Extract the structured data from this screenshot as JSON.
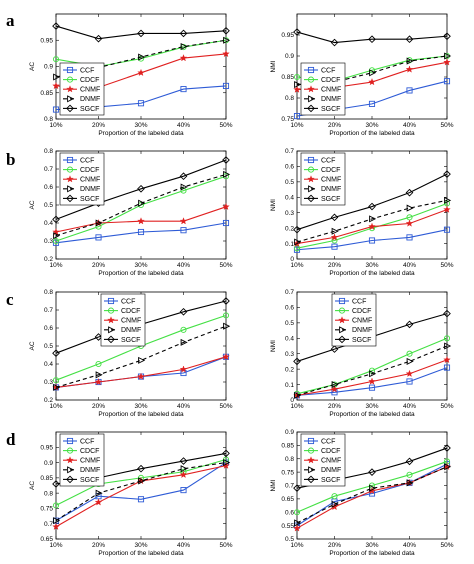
{
  "series_styles": {
    "CCF": {
      "color": "#2e5bd6",
      "marker": "square",
      "dash": "none"
    },
    "CDCF": {
      "color": "#44e044",
      "marker": "circle",
      "dash": "none"
    },
    "CNMF": {
      "color": "#e02020",
      "marker": "star",
      "dash": "none"
    },
    "DNMF": {
      "color": "#000000",
      "marker": "triangle",
      "dash": "4,3"
    },
    "SGCF": {
      "color": "#000000",
      "marker": "diamond",
      "dash": "none"
    }
  },
  "chart_data": [
    {
      "type": "line",
      "panel_label": "a",
      "xlabel": "Proportion of the labeled data",
      "ylabel": "AC",
      "categories": [
        "10%",
        "20%",
        "30%",
        "40%",
        "50%"
      ],
      "ylim": [
        0.8,
        1.0
      ],
      "yticks": [
        "0.8",
        "0.85",
        "0.9",
        "0.95"
      ],
      "ytick_values": [
        0.8,
        0.85,
        0.9,
        0.95
      ],
      "legend_position": "lower-left",
      "series": [
        {
          "name": "CCF",
          "values": [
            0.818,
            0.823,
            0.83,
            0.857,
            0.863
          ]
        },
        {
          "name": "CDCF",
          "values": [
            0.914,
            0.9,
            0.915,
            0.937,
            0.95
          ]
        },
        {
          "name": "CNMF",
          "values": [
            0.863,
            0.86,
            0.888,
            0.916,
            0.924
          ]
        },
        {
          "name": "DNMF",
          "values": [
            0.88,
            0.898,
            0.918,
            0.938,
            0.95
          ]
        },
        {
          "name": "SGCF",
          "values": [
            0.977,
            0.953,
            0.963,
            0.963,
            0.968
          ]
        }
      ]
    },
    {
      "type": "line",
      "panel_label": "",
      "xlabel": "Proportion of the labeled data",
      "ylabel": "NMI",
      "categories": [
        "10%",
        "20%",
        "30%",
        "40%",
        "50%"
      ],
      "ylim": [
        0.75,
        1.0
      ],
      "yticks": [
        "0.75",
        "0.8",
        "0.85",
        "0.9",
        "0.95"
      ],
      "ytick_values": [
        0.75,
        0.8,
        0.85,
        0.9,
        0.95
      ],
      "legend_position": "lower-left",
      "series": [
        {
          "name": "CCF",
          "values": [
            0.757,
            0.772,
            0.786,
            0.818,
            0.84
          ]
        },
        {
          "name": "CDCF",
          "values": [
            0.85,
            0.84,
            0.866,
            0.89,
            0.9
          ]
        },
        {
          "name": "CNMF",
          "values": [
            0.82,
            0.825,
            0.838,
            0.868,
            0.885
          ]
        },
        {
          "name": "DNMF",
          "values": [
            0.832,
            0.838,
            0.86,
            0.888,
            0.9
          ]
        },
        {
          "name": "SGCF",
          "values": [
            0.957,
            0.932,
            0.94,
            0.94,
            0.947
          ]
        }
      ]
    },
    {
      "type": "line",
      "panel_label": "b",
      "xlabel": "Proportion of the labeled data",
      "ylabel": "AC",
      "categories": [
        "10%",
        "20%",
        "30%",
        "40%",
        "50%"
      ],
      "ylim": [
        0.2,
        0.8
      ],
      "yticks": [
        "0.2",
        "0.3",
        "0.4",
        "0.5",
        "0.6",
        "0.7",
        "0.8"
      ],
      "ytick_values": [
        0.2,
        0.3,
        0.4,
        0.5,
        0.6,
        0.7,
        0.8
      ],
      "legend_position": "upper-left",
      "series": [
        {
          "name": "CCF",
          "values": [
            0.29,
            0.32,
            0.35,
            0.36,
            0.4
          ]
        },
        {
          "name": "CDCF",
          "values": [
            0.3,
            0.38,
            0.5,
            0.58,
            0.66
          ]
        },
        {
          "name": "CNMF",
          "values": [
            0.35,
            0.4,
            0.41,
            0.41,
            0.49
          ]
        },
        {
          "name": "DNMF",
          "values": [
            0.33,
            0.4,
            0.51,
            0.6,
            0.67
          ]
        },
        {
          "name": "SGCF",
          "values": [
            0.42,
            0.51,
            0.59,
            0.66,
            0.75
          ]
        }
      ]
    },
    {
      "type": "line",
      "panel_label": "",
      "xlabel": "Proportion of the labeled data",
      "ylabel": "NMI",
      "categories": [
        "10%",
        "20%",
        "30%",
        "40%",
        "50%"
      ],
      "ylim": [
        0.0,
        0.7
      ],
      "yticks": [
        "0",
        "0.1",
        "0.2",
        "0.3",
        "0.4",
        "0.5",
        "0.6",
        "0.7"
      ],
      "ytick_values": [
        0,
        0.1,
        0.2,
        0.3,
        0.4,
        0.5,
        0.6,
        0.7
      ],
      "legend_position": "upper-left",
      "series": [
        {
          "name": "CCF",
          "values": [
            0.06,
            0.08,
            0.12,
            0.14,
            0.19
          ]
        },
        {
          "name": "CDCF",
          "values": [
            0.07,
            0.12,
            0.2,
            0.27,
            0.36
          ]
        },
        {
          "name": "CNMF",
          "values": [
            0.1,
            0.14,
            0.21,
            0.23,
            0.32
          ]
        },
        {
          "name": "DNMF",
          "values": [
            0.11,
            0.18,
            0.26,
            0.33,
            0.38
          ]
        },
        {
          "name": "SGCF",
          "values": [
            0.19,
            0.27,
            0.34,
            0.43,
            0.55
          ]
        }
      ]
    },
    {
      "type": "line",
      "panel_label": "c",
      "xlabel": "Proportion of the labeled data",
      "ylabel": "AC",
      "categories": [
        "10%",
        "20%",
        "30%",
        "40%",
        "50%"
      ],
      "ylim": [
        0.2,
        0.8
      ],
      "yticks": [
        "0.2",
        "0.3",
        "0.4",
        "0.5",
        "0.6",
        "0.7",
        "0.8"
      ],
      "ytick_values": [
        0.2,
        0.3,
        0.4,
        0.5,
        0.6,
        0.7,
        0.8
      ],
      "legend_position": "top",
      "series": [
        {
          "name": "CCF",
          "values": [
            0.27,
            0.3,
            0.33,
            0.35,
            0.44
          ]
        },
        {
          "name": "CDCF",
          "values": [
            0.31,
            0.4,
            0.5,
            0.59,
            0.67
          ]
        },
        {
          "name": "CNMF",
          "values": [
            0.27,
            0.3,
            0.33,
            0.37,
            0.44
          ]
        },
        {
          "name": "DNMF",
          "values": [
            0.27,
            0.34,
            0.42,
            0.52,
            0.61
          ]
        },
        {
          "name": "SGCF",
          "values": [
            0.46,
            0.55,
            0.62,
            0.69,
            0.75
          ]
        }
      ]
    },
    {
      "type": "line",
      "panel_label": "",
      "xlabel": "Proportion of the labeled data",
      "ylabel": "NMI",
      "categories": [
        "10%",
        "20%",
        "30%",
        "40%",
        "50%"
      ],
      "ylim": [
        0.0,
        0.7
      ],
      "yticks": [
        "0",
        "0.1",
        "0.2",
        "0.3",
        "0.4",
        "0.5",
        "0.6",
        "0.7"
      ],
      "ytick_values": [
        0,
        0.1,
        0.2,
        0.3,
        0.4,
        0.5,
        0.6,
        0.7
      ],
      "legend_position": "top",
      "series": [
        {
          "name": "CCF",
          "values": [
            0.03,
            0.05,
            0.08,
            0.12,
            0.21
          ]
        },
        {
          "name": "CDCF",
          "values": [
            0.04,
            0.1,
            0.19,
            0.3,
            0.4
          ]
        },
        {
          "name": "CNMF",
          "values": [
            0.03,
            0.07,
            0.12,
            0.17,
            0.26
          ]
        },
        {
          "name": "DNMF",
          "values": [
            0.03,
            0.1,
            0.17,
            0.25,
            0.35
          ]
        },
        {
          "name": "SGCF",
          "values": [
            0.25,
            0.33,
            0.41,
            0.49,
            0.56
          ]
        }
      ]
    },
    {
      "type": "line",
      "panel_label": "d",
      "xlabel": "Proportion of the labeled data",
      "ylabel": "AC",
      "categories": [
        "10%",
        "20%",
        "30%",
        "40%",
        "50%"
      ],
      "ylim": [
        0.65,
        1.0
      ],
      "yticks": [
        "0.65",
        "0.7",
        "0.75",
        "0.8",
        "0.85",
        "0.9",
        "0.95"
      ],
      "ytick_values": [
        0.65,
        0.7,
        0.75,
        0.8,
        0.85,
        0.9,
        0.95
      ],
      "legend_position": "upper-left",
      "series": [
        {
          "name": "CCF",
          "values": [
            0.71,
            0.79,
            0.78,
            0.81,
            0.9
          ]
        },
        {
          "name": "CDCF",
          "values": [
            0.76,
            0.83,
            0.85,
            0.87,
            0.91
          ]
        },
        {
          "name": "CNMF",
          "values": [
            0.69,
            0.77,
            0.84,
            0.86,
            0.89
          ]
        },
        {
          "name": "DNMF",
          "values": [
            0.71,
            0.8,
            0.84,
            0.88,
            0.9
          ]
        },
        {
          "name": "SGCF",
          "values": [
            0.83,
            0.85,
            0.88,
            0.905,
            0.93
          ]
        }
      ]
    },
    {
      "type": "line",
      "panel_label": "",
      "xlabel": "Proportion of the labeled data",
      "ylabel": "NMI",
      "categories": [
        "10%",
        "20%",
        "30%",
        "40%",
        "50%"
      ],
      "ylim": [
        0.5,
        0.9
      ],
      "yticks": [
        "0.5",
        "0.55",
        "0.6",
        "0.65",
        "0.7",
        "0.75",
        "0.8",
        "0.85",
        "0.9"
      ],
      "ytick_values": [
        0.5,
        0.55,
        0.6,
        0.65,
        0.7,
        0.75,
        0.8,
        0.85,
        0.9
      ],
      "legend_position": "upper-left",
      "series": [
        {
          "name": "CCF",
          "values": [
            0.55,
            0.64,
            0.67,
            0.71,
            0.78
          ]
        },
        {
          "name": "CDCF",
          "values": [
            0.6,
            0.66,
            0.7,
            0.74,
            0.79
          ]
        },
        {
          "name": "CNMF",
          "values": [
            0.54,
            0.62,
            0.68,
            0.71,
            0.77
          ]
        },
        {
          "name": "DNMF",
          "values": [
            0.56,
            0.63,
            0.69,
            0.71,
            0.77
          ]
        },
        {
          "name": "SGCF",
          "values": [
            0.69,
            0.72,
            0.75,
            0.79,
            0.84
          ]
        }
      ]
    }
  ]
}
